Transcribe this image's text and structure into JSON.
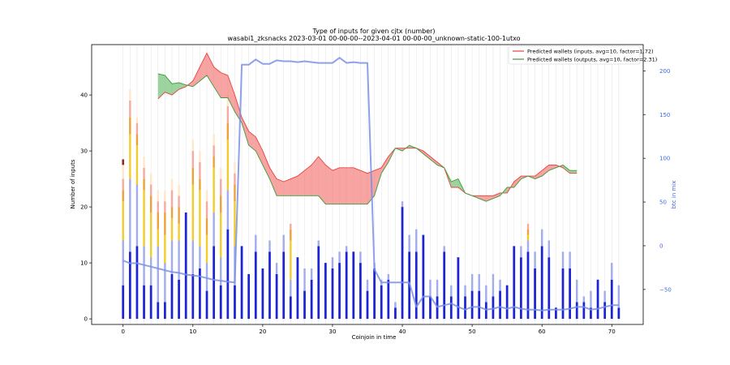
{
  "chart_data": {
    "type": "bar",
    "title": "Type of inputs for given cjtx (number)",
    "subtitle": "wasabi1_zksnacks 2023-03-01 00-00-00--2023-04-01 00-00-00_unknown-static-100-1utxo",
    "xlabel": "Coinjoin in time",
    "ylabel": "Number of inputs",
    "y2label": "btc in mix",
    "xlim": [
      -4.5,
      74.5
    ],
    "ylim": [
      -1,
      49
    ],
    "y2lim": [
      -90,
      230
    ],
    "x_ticks": [
      0,
      10,
      20,
      30,
      40,
      50,
      60,
      70
    ],
    "y_ticks": [
      0,
      10,
      20,
      30,
      40
    ],
    "y2_ticks": [
      -50,
      0,
      50,
      100,
      150,
      200
    ],
    "grid": "vertical",
    "legend_position": "top-right",
    "stack_colors": {
      "base": "#1c24d4",
      "second": "#a3acec",
      "third": "#f2cc2b",
      "fourth": "#eea13a",
      "fifth": "#f5ab9f",
      "sixth": "#fde8cc"
    },
    "stacks": {
      "base": [
        6,
        12,
        13,
        6,
        6,
        3,
        3,
        8,
        7,
        19,
        8,
        9,
        5,
        13,
        6,
        16,
        6,
        13,
        8,
        12,
        9,
        12,
        8,
        12,
        4,
        11,
        5,
        7,
        13,
        10,
        9,
        10,
        12,
        12,
        10,
        5,
        9,
        6,
        7,
        2,
        20,
        12,
        12,
        15,
        4,
        4,
        12,
        4,
        11,
        4,
        5,
        5,
        3,
        4,
        5,
        6,
        13,
        11,
        12,
        9,
        13,
        11,
        2,
        9,
        9,
        3,
        3,
        2,
        7,
        3,
        7,
        2
      ],
      "second": [
        8,
        13,
        11,
        7,
        5,
        10,
        7,
        6,
        7,
        0,
        6,
        4,
        5,
        6,
        5,
        7,
        7,
        0,
        0,
        3,
        0,
        2,
        2,
        3,
        3,
        0,
        4,
        2,
        1,
        0,
        2,
        2,
        1,
        0,
        2,
        2,
        1,
        1,
        1,
        1,
        1,
        3,
        4,
        0,
        3,
        3,
        1,
        2,
        0,
        2,
        3,
        3,
        3,
        4,
        2,
        0,
        0,
        2,
        2,
        3,
        3,
        3,
        0,
        3,
        3,
        4,
        1,
        3,
        0,
        2,
        3,
        4
      ],
      "third": [
        7,
        8,
        7,
        10,
        8,
        3,
        5,
        4,
        3,
        0,
        10,
        10,
        5,
        8,
        8,
        9,
        8,
        0,
        0,
        0,
        0,
        0,
        0,
        0,
        7,
        0,
        0,
        0,
        0,
        0,
        0,
        0,
        0,
        0,
        0,
        0,
        0,
        0,
        0,
        0,
        0,
        0,
        0,
        0,
        0,
        0,
        0,
        0,
        0,
        0,
        0,
        0,
        0,
        0,
        0,
        0,
        0,
        0,
        1,
        0,
        0,
        0,
        0,
        0,
        0,
        0,
        0,
        0,
        0,
        0,
        0,
        0
      ],
      "fourth": [
        2,
        3,
        2,
        2,
        3,
        3,
        4,
        2,
        3,
        0,
        3,
        2,
        3,
        2,
        3,
        3,
        3,
        0,
        0,
        0,
        0,
        0,
        0,
        0,
        2,
        0,
        0,
        0,
        0,
        0,
        0,
        0,
        0,
        0,
        0,
        0,
        0,
        0,
        0,
        0,
        0,
        0,
        0,
        0,
        0,
        0,
        0,
        0,
        0,
        0,
        0,
        0,
        0,
        0,
        0,
        0,
        0,
        0,
        1,
        0,
        0,
        0,
        0,
        0,
        0,
        0,
        0,
        0,
        0,
        0,
        0,
        0
      ],
      "fifth": [
        2,
        3,
        2,
        2,
        2,
        2,
        2,
        3,
        2,
        0,
        3,
        3,
        3,
        2,
        3,
        3,
        2,
        0,
        0,
        0,
        0,
        0,
        0,
        0,
        1,
        0,
        0,
        0,
        0,
        0,
        0,
        0,
        0,
        0,
        0,
        0,
        0,
        0,
        0,
        0,
        0,
        0,
        0,
        0,
        0,
        0,
        0,
        0,
        0,
        0,
        0,
        0,
        0,
        0,
        0,
        0,
        0,
        0,
        1,
        0,
        0,
        0,
        0,
        0,
        0,
        0,
        0,
        0,
        0,
        0,
        0,
        0
      ],
      "sixth": [
        3,
        2,
        1,
        2,
        2,
        2,
        2,
        2,
        2,
        0,
        2,
        2,
        2,
        2,
        2,
        2,
        2,
        0,
        0,
        0,
        0,
        0,
        0,
        0,
        0,
        0,
        0,
        0,
        0,
        0,
        0,
        0,
        0,
        0,
        0,
        0,
        0,
        0,
        0,
        0,
        0,
        0,
        0,
        0,
        0,
        0,
        0,
        0,
        0,
        0,
        0,
        0,
        0,
        0,
        0,
        0,
        0,
        0,
        0,
        0,
        0,
        0,
        0,
        0,
        0,
        0,
        0,
        0,
        0,
        0,
        0,
        0
      ]
    },
    "series": [
      {
        "name": "Predicted wallets (inputs, avg=10, factor=1.72)",
        "color": "#e8413c",
        "x": [
          5,
          6,
          7,
          8,
          9,
          10,
          11,
          12,
          13,
          14,
          15,
          16,
          17,
          18,
          19,
          20,
          21,
          22,
          23,
          24,
          25,
          26,
          27,
          28,
          29,
          30,
          31,
          32,
          33,
          34,
          35,
          36,
          37,
          38,
          39,
          40,
          41,
          42,
          43,
          44,
          45,
          46,
          47,
          48,
          49,
          50,
          51,
          52,
          53,
          54,
          55,
          56,
          57,
          58,
          59,
          60,
          61,
          62,
          63,
          64,
          65
        ],
        "y": [
          39.3,
          40.5,
          40,
          41,
          41.5,
          42.5,
          45,
          47.5,
          45,
          44,
          43.5,
          40,
          36,
          33.5,
          32.5,
          30,
          27,
          25,
          24.5,
          25,
          25.5,
          26.5,
          27.5,
          29,
          27.5,
          26.5,
          27,
          27,
          27,
          26.5,
          26,
          26.5,
          27,
          29,
          30.5,
          30.5,
          30.5,
          30.5,
          30,
          29,
          28,
          27,
          23.5,
          23.5,
          22.5,
          22,
          22,
          22,
          22,
          22.5,
          22.5,
          24.5,
          25.5,
          25.5,
          25.5,
          26.5,
          27.5,
          27.5,
          27,
          26,
          26
        ]
      },
      {
        "name": "Predicted wallets (outputs, avg=10, factor=2.31)",
        "color": "#3a9c3a",
        "x": [
          5,
          6,
          7,
          8,
          9,
          10,
          11,
          12,
          13,
          14,
          15,
          16,
          17,
          18,
          19,
          20,
          21,
          22,
          23,
          24,
          25,
          26,
          27,
          28,
          29,
          30,
          31,
          32,
          33,
          34,
          35,
          36,
          37,
          38,
          39,
          40,
          41,
          42,
          43,
          44,
          45,
          46,
          47,
          48,
          49,
          50,
          51,
          52,
          53,
          54,
          55,
          56,
          57,
          58,
          59,
          60,
          61,
          62,
          63,
          64,
          65
        ],
        "y": [
          43.8,
          43.5,
          42,
          42.2,
          41.8,
          41.5,
          42.5,
          43.5,
          41.5,
          39.5,
          39.5,
          37,
          35,
          31,
          30,
          27.5,
          25,
          22,
          22,
          22,
          22,
          22,
          22,
          22,
          20.5,
          20.5,
          20.5,
          20.5,
          20.5,
          20.5,
          20.5,
          22,
          26,
          28,
          30.5,
          30,
          31,
          30.5,
          29.5,
          28.5,
          27.5,
          27,
          24.5,
          25,
          22.5,
          22,
          21.5,
          21,
          21.5,
          22,
          23.5,
          23.5,
          25,
          25.5,
          25,
          25.5,
          26.5,
          27,
          27.5,
          26.5,
          26.5
        ]
      },
      {
        "name": "",
        "color": "#7b90e6",
        "axis": "right",
        "x": [
          0,
          1,
          2,
          3,
          4,
          5,
          6,
          7,
          8,
          9,
          10,
          11,
          12,
          13,
          14,
          15,
          16,
          17,
          18,
          19,
          20,
          21,
          22,
          23,
          24,
          25,
          26,
          27,
          28,
          29,
          30,
          31,
          32,
          33,
          34,
          35,
          36,
          37,
          38,
          39,
          40,
          41,
          42,
          43,
          44,
          45,
          46,
          47,
          48,
          49,
          50,
          51,
          52,
          53,
          54,
          55,
          56,
          57,
          58,
          59,
          60,
          61,
          62,
          63,
          64,
          65,
          66,
          67,
          68,
          69,
          70,
          71
        ],
        "y": [
          -17,
          -20,
          -20,
          -22,
          -24,
          -26,
          -28,
          -30,
          -31,
          -33,
          -34,
          -35,
          -37,
          -39,
          -40,
          -41,
          -42,
          207,
          207,
          213,
          208,
          208,
          212,
          211,
          211,
          210,
          211,
          210,
          209,
          209,
          209,
          215,
          209,
          210,
          209,
          209,
          -27,
          -42,
          -42,
          -42,
          -42,
          -42,
          -70,
          -58,
          -58,
          -70,
          -68,
          -66,
          -70,
          -73,
          -70,
          -70,
          -73,
          -72,
          -70,
          -72,
          -70,
          -72,
          -73,
          -73,
          -74,
          -73,
          -73,
          -73,
          -72,
          -70,
          -70,
          -73,
          -72,
          -70,
          -68,
          -68
        ]
      }
    ],
    "dark_marks": [
      {
        "x": 0,
        "y": 27.5,
        "color": "#8b2b1f"
      }
    ]
  }
}
